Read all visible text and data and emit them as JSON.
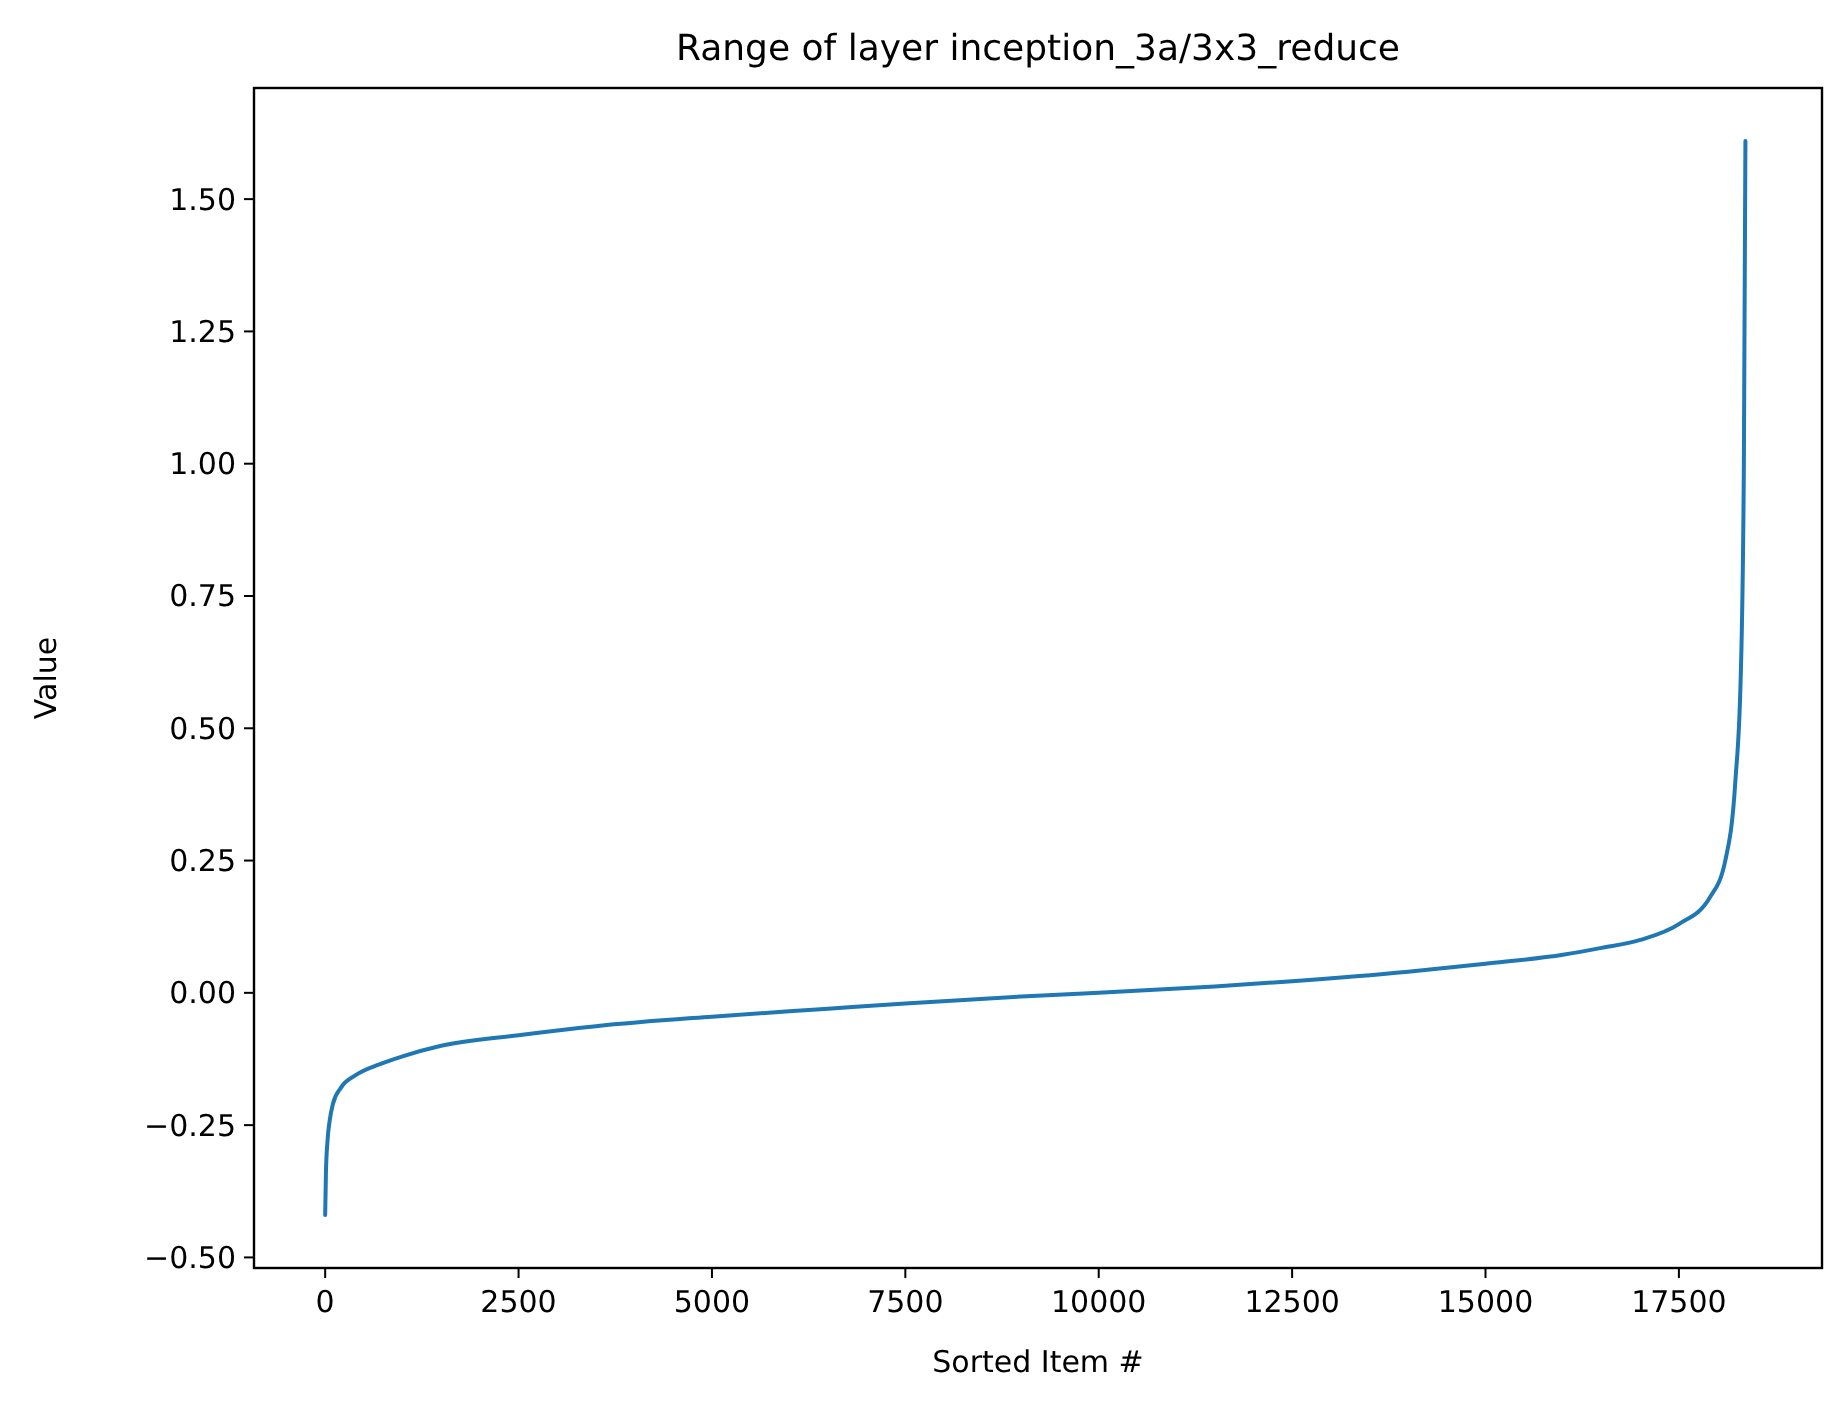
{
  "chart_data": {
    "type": "line",
    "title": "Range of layer inception_3a/3x3_reduce",
    "xlabel": "Sorted Item #",
    "ylabel": "Value",
    "xlim": [
      -920,
      19350
    ],
    "ylim": [
      -0.52,
      1.71
    ],
    "xticks": [
      0,
      2500,
      5000,
      7500,
      10000,
      12500,
      15000,
      17500
    ],
    "yticks": [
      {
        "value": -0.5,
        "label": "−0.50"
      },
      {
        "value": -0.25,
        "label": "−0.25"
      },
      {
        "value": 0,
        "label": "0.00"
      },
      {
        "value": 0.25,
        "label": "0.25"
      },
      {
        "value": 0.5,
        "label": "0.50"
      },
      {
        "value": 0.75,
        "label": "0.75"
      },
      {
        "value": 1,
        "label": "1.00"
      },
      {
        "value": 1.25,
        "label": "1.25"
      },
      {
        "value": 1.5,
        "label": "1.50"
      }
    ],
    "grid": false,
    "marker": "none",
    "line_style": "solid",
    "series": [
      {
        "color": "#1f77b4",
        "x": [
          0,
          10,
          30,
          60,
          100,
          200,
          400,
          700,
          1000,
          1500,
          2500,
          3500,
          5000,
          6500,
          7500,
          9000,
          10000,
          11500,
          12500,
          14000,
          15000,
          16000,
          16500,
          17000,
          17500,
          17900,
          18100,
          18230,
          18300,
          18340,
          18360
        ],
        "values": [
          -0.42,
          -0.34,
          -0.28,
          -0.24,
          -0.21,
          -0.18,
          -0.155,
          -0.135,
          -0.12,
          -0.1,
          -0.08,
          -0.063,
          -0.045,
          -0.03,
          -0.02,
          -0.007,
          0,
          0.012,
          0.022,
          0.04,
          0.055,
          0.072,
          0.085,
          0.1,
          0.13,
          0.18,
          0.25,
          0.4,
          0.6,
          1.0,
          1.61
        ]
      }
    ]
  }
}
